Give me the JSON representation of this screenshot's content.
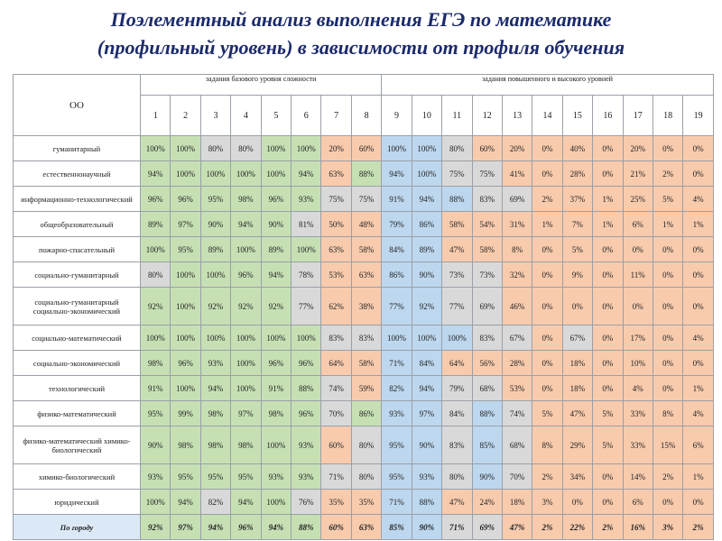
{
  "header": {
    "title": [
      "Поэлементный анализ выполнения ЕГЭ по математике",
      "(профильный уровень) в зависимости от профиля обучения"
    ]
  },
  "table": {
    "corner": "ОО",
    "groups": [
      "задания базового уровня сложности",
      "задания повышенного и высокого уровней"
    ],
    "columns": [
      "1",
      "2",
      "3",
      "4",
      "5",
      "6",
      "7",
      "8",
      "9",
      "10",
      "11",
      "12",
      "13",
      "14",
      "15",
      "16",
      "17",
      "18",
      "19"
    ],
    "rows": [
      {
        "label": "гуманитарный",
        "cells": [
          "100%",
          "100%",
          "80%",
          "80%",
          "100%",
          "100%",
          "20%",
          "60%",
          "100%",
          "100%",
          "80%",
          "60%",
          "20%",
          "0%",
          "40%",
          "0%",
          "20%",
          "0%",
          "0%"
        ]
      },
      {
        "label": "естественнонаучный",
        "cells": [
          "94%",
          "100%",
          "100%",
          "100%",
          "100%",
          "94%",
          "63%",
          "88%",
          "94%",
          "100%",
          "75%",
          "75%",
          "41%",
          "0%",
          "28%",
          "0%",
          "21%",
          "2%",
          "0%"
        ]
      },
      {
        "label": "информационно-технологический",
        "cells": [
          "96%",
          "96%",
          "95%",
          "98%",
          "96%",
          "93%",
          "75%",
          "75%",
          "91%",
          "94%",
          "88%",
          "83%",
          "69%",
          "2%",
          "37%",
          "1%",
          "25%",
          "5%",
          "4%"
        ]
      },
      {
        "label": "общеобразовательный",
        "cells": [
          "89%",
          "97%",
          "90%",
          "94%",
          "90%",
          "81%",
          "50%",
          "48%",
          "79%",
          "86%",
          "58%",
          "54%",
          "31%",
          "1%",
          "7%",
          "1%",
          "6%",
          "1%",
          "1%"
        ]
      },
      {
        "label": "пожарно-спасательный",
        "cells": [
          "100%",
          "95%",
          "89%",
          "100%",
          "89%",
          "100%",
          "63%",
          "58%",
          "84%",
          "89%",
          "47%",
          "58%",
          "8%",
          "0%",
          "5%",
          "0%",
          "0%",
          "0%",
          "0%"
        ]
      },
      {
        "label": "социально-гуманитарный",
        "cells": [
          "80%",
          "100%",
          "100%",
          "96%",
          "94%",
          "78%",
          "53%",
          "63%",
          "86%",
          "90%",
          "73%",
          "73%",
          "32%",
          "0%",
          "9%",
          "0%",
          "11%",
          "0%",
          "0%"
        ]
      },
      {
        "label": "социально-гуманитарный социально-экономический",
        "cells": [
          "92%",
          "100%",
          "92%",
          "92%",
          "92%",
          "77%",
          "62%",
          "38%",
          "77%",
          "92%",
          "77%",
          "69%",
          "46%",
          "0%",
          "0%",
          "0%",
          "0%",
          "0%",
          "0%"
        ]
      },
      {
        "label": "социально-математический",
        "cells": [
          "100%",
          "100%",
          "100%",
          "100%",
          "100%",
          "100%",
          "83%",
          "83%",
          "100%",
          "100%",
          "100%",
          "83%",
          "67%",
          "0%",
          "67%",
          "0%",
          "17%",
          "0%",
          "4%"
        ]
      },
      {
        "label": "социально-экономический",
        "cells": [
          "98%",
          "96%",
          "93%",
          "100%",
          "96%",
          "96%",
          "64%",
          "58%",
          "71%",
          "84%",
          "64%",
          "56%",
          "28%",
          "0%",
          "18%",
          "0%",
          "10%",
          "0%",
          "0%"
        ]
      },
      {
        "label": "технологический",
        "cells": [
          "91%",
          "100%",
          "94%",
          "100%",
          "91%",
          "88%",
          "74%",
          "59%",
          "82%",
          "94%",
          "79%",
          "68%",
          "53%",
          "0%",
          "18%",
          "0%",
          "4%",
          "0%",
          "1%"
        ]
      },
      {
        "label": "физико-математический",
        "cells": [
          "95%",
          "99%",
          "98%",
          "97%",
          "98%",
          "96%",
          "70%",
          "86%",
          "93%",
          "97%",
          "84%",
          "88%",
          "74%",
          "5%",
          "47%",
          "5%",
          "33%",
          "8%",
          "4%"
        ]
      },
      {
        "label": "физико-математический химико-биологический",
        "cells": [
          "90%",
          "98%",
          "98%",
          "98%",
          "100%",
          "93%",
          "60%",
          "80%",
          "95%",
          "90%",
          "83%",
          "85%",
          "68%",
          "8%",
          "29%",
          "5%",
          "33%",
          "15%",
          "6%"
        ]
      },
      {
        "label": "химико-биологический",
        "cells": [
          "93%",
          "95%",
          "95%",
          "95%",
          "93%",
          "93%",
          "71%",
          "80%",
          "95%",
          "93%",
          "80%",
          "90%",
          "70%",
          "2%",
          "34%",
          "0%",
          "14%",
          "2%",
          "1%"
        ]
      },
      {
        "label": "юридический",
        "cells": [
          "100%",
          "94%",
          "82%",
          "94%",
          "100%",
          "76%",
          "35%",
          "35%",
          "71%",
          "88%",
          "47%",
          "24%",
          "18%",
          "3%",
          "0%",
          "0%",
          "6%",
          "0%",
          "0%"
        ]
      },
      {
        "label": "По городу",
        "cells": [
          "92%",
          "97%",
          "94%",
          "96%",
          "94%",
          "88%",
          "60%",
          "63%",
          "85%",
          "90%",
          "71%",
          "69%",
          "47%",
          "2%",
          "22%",
          "2%",
          "16%",
          "3%",
          "2%"
        ]
      }
    ]
  }
}
